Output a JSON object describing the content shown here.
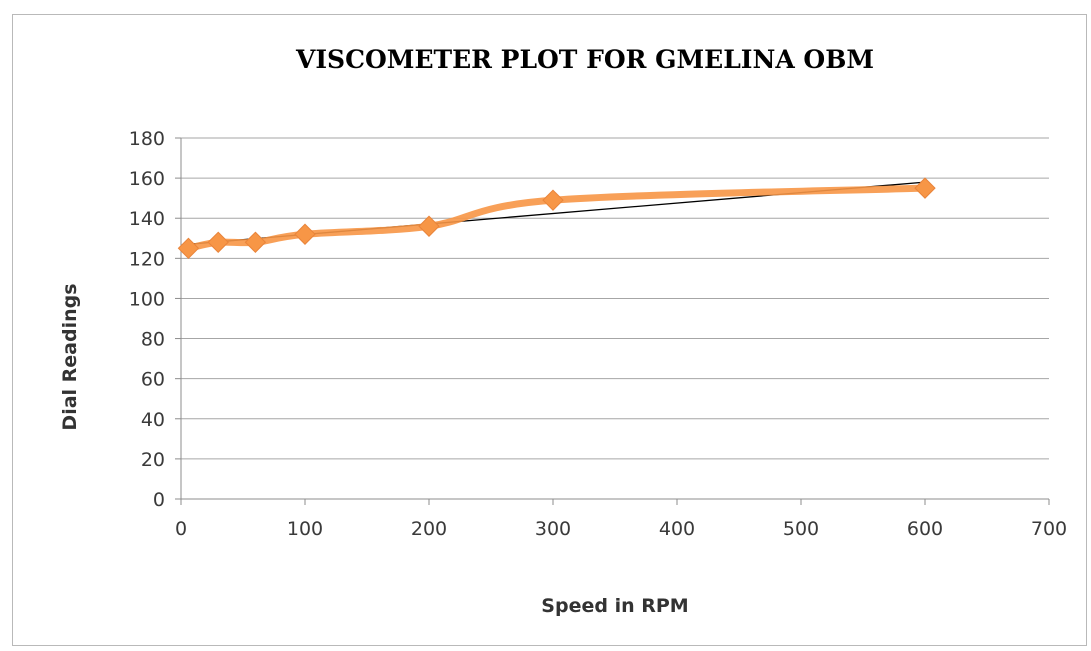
{
  "chart_data": {
    "type": "line",
    "title": "VISCOMETER PLOT FOR GMELINA OBM",
    "xlabel": "Speed in RPM",
    "ylabel": "Dial Readings",
    "xlim": [
      0,
      700
    ],
    "ylim": [
      0,
      180
    ],
    "x_ticks": [
      "0",
      "100",
      "200",
      "300",
      "400",
      "500",
      "600",
      "700"
    ],
    "y_ticks": [
      "0",
      "20",
      "40",
      "60",
      "80",
      "100",
      "120",
      "140",
      "160",
      "180"
    ],
    "grid": "horizontal",
    "legend": "none",
    "series": [
      {
        "x": [
          6,
          30,
          60,
          100,
          200,
          300,
          600
        ],
        "y": [
          125,
          128,
          128,
          132,
          136,
          149,
          155
        ],
        "color": "#f79646",
        "marker": "diamond",
        "smooth": true
      }
    ],
    "trendline": {
      "type": "linear",
      "color": "#000000",
      "x": [
        6,
        600
      ],
      "y": [
        127,
        158
      ]
    }
  }
}
